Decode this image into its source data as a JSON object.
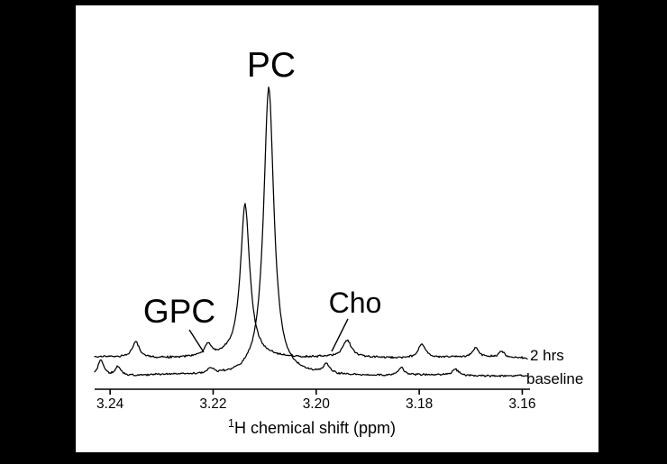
{
  "figure": {
    "background_color": "#000000",
    "plot_background_color": "#ffffff",
    "line_color": "#000000"
  },
  "annotations": {
    "pc": "PC",
    "gpc": "GPC",
    "cho": "Cho"
  },
  "legend": {
    "top": "2 hrs",
    "bottom": "baseline"
  },
  "axis": {
    "title_sup": "1",
    "title_rest": "H chemical shift (ppm)"
  },
  "chart_data": {
    "type": "line",
    "title": "",
    "xlabel": "1H chemical shift (ppm)",
    "ylabel": "",
    "x_axis_reversed": true,
    "x_ticks": [
      3.24,
      3.22,
      3.2,
      3.18,
      3.16
    ],
    "x_range_ppm": [
      3.243,
      3.1585
    ],
    "ylim": [
      0,
      1.05
    ],
    "grid": false,
    "legend_position": "right-of-traces",
    "series": [
      {
        "name": "2 hrs",
        "baseline_offset_rel": 0.0625,
        "peaks": [
          {
            "ppm": 3.235,
            "rel_intensity": 0.055,
            "fwhm_ppm": 0.0016,
            "assignment": ""
          },
          {
            "ppm": 3.221,
            "rel_intensity": 0.038,
            "fwhm_ppm": 0.0016,
            "assignment": "GPC"
          },
          {
            "ppm": 3.2138,
            "rel_intensity": 0.53,
            "fwhm_ppm": 0.0022,
            "assignment": "PC"
          },
          {
            "ppm": 3.194,
            "rel_intensity": 0.057,
            "fwhm_ppm": 0.002,
            "assignment": "Cho"
          },
          {
            "ppm": 3.1795,
            "rel_intensity": 0.05,
            "fwhm_ppm": 0.0016,
            "assignment": ""
          },
          {
            "ppm": 3.169,
            "rel_intensity": 0.032,
            "fwhm_ppm": 0.0014,
            "assignment": ""
          },
          {
            "ppm": 3.164,
            "rel_intensity": 0.022,
            "fwhm_ppm": 0.0013,
            "assignment": ""
          }
        ]
      },
      {
        "name": "baseline",
        "baseline_offset_rel": 0.0,
        "peaks": [
          {
            "ppm": 3.2418,
            "rel_intensity": 0.055,
            "fwhm_ppm": 0.0013,
            "assignment": ""
          },
          {
            "ppm": 3.2385,
            "rel_intensity": 0.03,
            "fwhm_ppm": 0.0013,
            "assignment": ""
          },
          {
            "ppm": 3.2205,
            "rel_intensity": 0.018,
            "fwhm_ppm": 0.0014,
            "assignment": "GPC"
          },
          {
            "ppm": 3.2092,
            "rel_intensity": 1.0,
            "fwhm_ppm": 0.0024,
            "assignment": "PC"
          },
          {
            "ppm": 3.198,
            "rel_intensity": 0.03,
            "fwhm_ppm": 0.0014,
            "assignment": "Cho"
          },
          {
            "ppm": 3.1835,
            "rel_intensity": 0.026,
            "fwhm_ppm": 0.0014,
            "assignment": ""
          },
          {
            "ppm": 3.173,
            "rel_intensity": 0.022,
            "fwhm_ppm": 0.0014,
            "assignment": ""
          }
        ]
      }
    ]
  }
}
